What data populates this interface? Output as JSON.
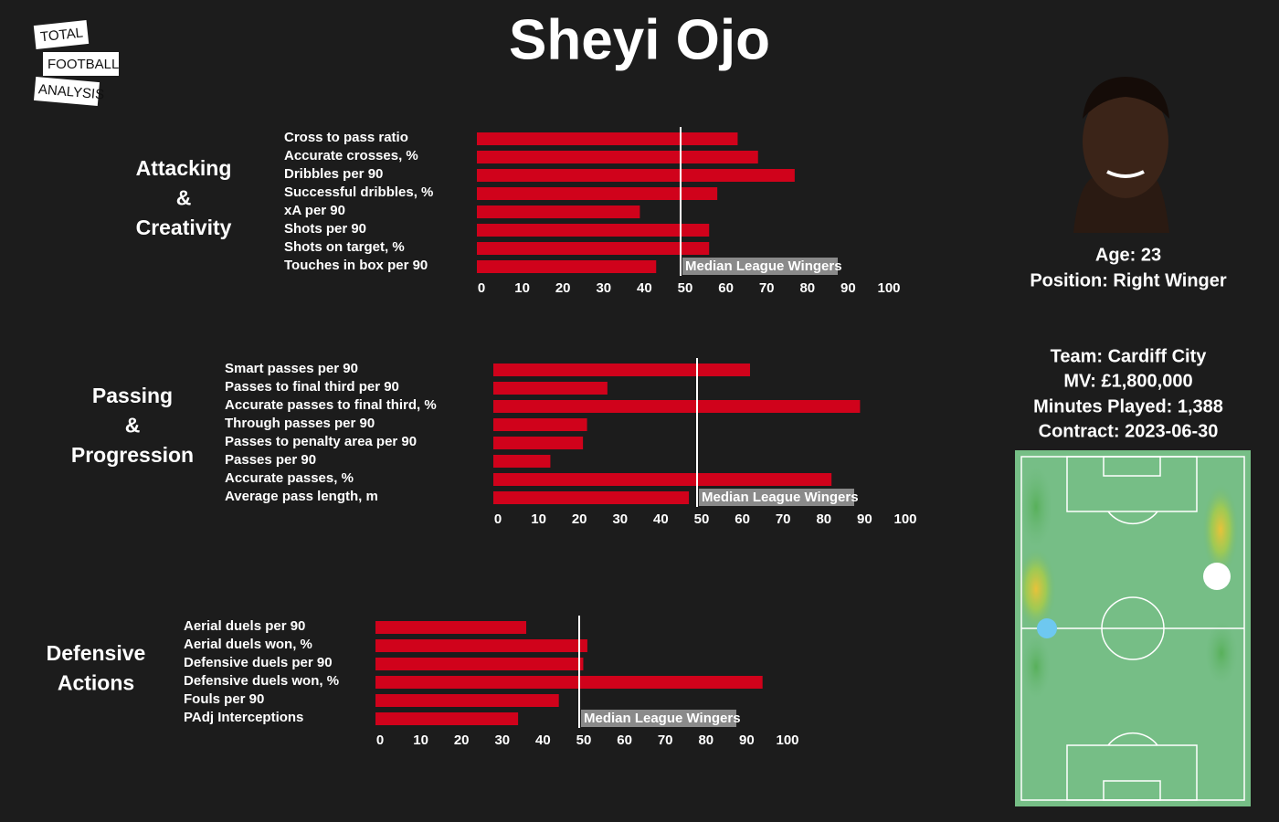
{
  "title": "Sheyi Ojo",
  "logo": [
    "TOTAL",
    "FOOTBALL",
    "ANALYSIS"
  ],
  "player": {
    "age": "Age: 23",
    "position": "Position: Right Winger",
    "team": "Team: Cardiff City",
    "mv": "MV: £1,800,000",
    "minutes": "Minutes Played: 1,388",
    "contract": "Contract: 2023-06-30"
  },
  "chart_data": [
    {
      "type": "bar",
      "orientation": "horizontal",
      "label_lines": [
        "Attacking",
        "&",
        "Creativity"
      ],
      "categories": [
        "Cross to pass ratio",
        "Accurate crosses, %",
        "Dribbles per 90",
        "Successful dribbles, %",
        "xA per 90",
        "Shots per 90",
        "Shots on target, %",
        "Touches in box per 90"
      ],
      "values": [
        64,
        69,
        78,
        59,
        40,
        57,
        57,
        44
      ],
      "color": "#d0021b",
      "xlim": [
        0,
        100
      ],
      "xticks": [
        0,
        10,
        20,
        30,
        40,
        50,
        60,
        70,
        80,
        90,
        100
      ],
      "median": 50,
      "median_label": "Median League Wingers"
    },
    {
      "type": "bar",
      "orientation": "horizontal",
      "label_lines": [
        "Passing",
        "&",
        "Progression"
      ],
      "categories": [
        "Smart passes per 90",
        "Passes to final third per 90",
        "Accurate passes to final third, %",
        "Through passes per 90",
        "Passes to penalty area per 90",
        "Passes per 90",
        "Accurate passes, %",
        "Average pass length, m"
      ],
      "values": [
        63,
        28,
        90,
        23,
        22,
        14,
        83,
        48
      ],
      "color": "#d0021b",
      "xlim": [
        0,
        100
      ],
      "xticks": [
        0,
        10,
        20,
        30,
        40,
        50,
        60,
        70,
        80,
        90,
        100
      ],
      "median": 50,
      "median_label": "Median League Wingers"
    },
    {
      "type": "bar",
      "orientation": "horizontal",
      "label_lines": [
        "Defensive",
        "Actions"
      ],
      "categories": [
        "Aerial duels per 90",
        "Aerial duels won, %",
        "Defensive duels per 90",
        "Defensive duels won, %",
        "Fouls per 90",
        "PAdj Interceptions"
      ],
      "values": [
        37,
        52,
        51,
        95,
        45,
        35
      ],
      "color": "#d0021b",
      "xlim": [
        0,
        100
      ],
      "xticks": [
        0,
        10,
        20,
        30,
        40,
        50,
        60,
        70,
        80,
        90,
        100
      ],
      "median": 50,
      "median_label": "Median League Wingers"
    }
  ]
}
